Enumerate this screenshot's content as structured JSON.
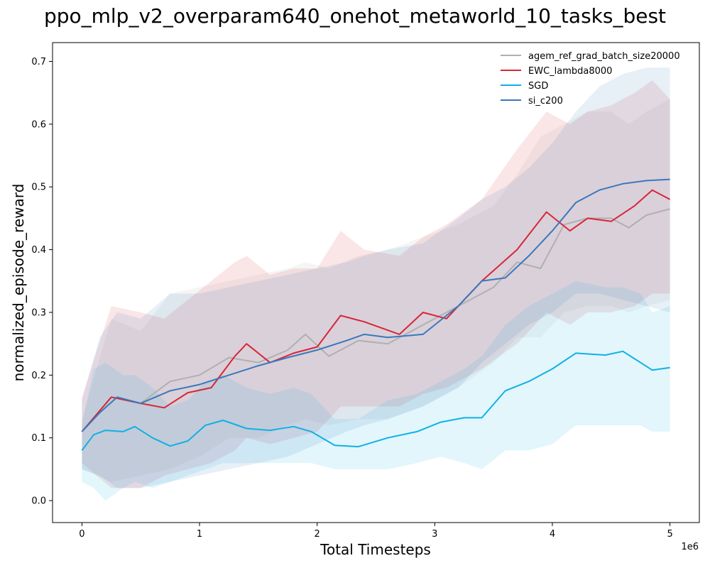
{
  "chart_data": {
    "type": "line",
    "title": "ppo_mlp_v2_overparam640_onehot_metaworld_10_tasks_best",
    "xlabel": "Total Timesteps",
    "ylabel": "normalized_episode_reward",
    "x_offset_label": "1e6",
    "xlim": [
      -0.25,
      5.25
    ],
    "ylim": [
      -0.035,
      0.73
    ],
    "xticks": [
      0,
      1,
      2,
      3,
      4,
      5
    ],
    "xtick_labels": [
      "0",
      "1",
      "2",
      "3",
      "4",
      "5"
    ],
    "yticks": [
      0.0,
      0.1,
      0.2,
      0.3,
      0.4,
      0.5,
      0.6,
      0.7
    ],
    "ytick_labels": [
      "0.0",
      "0.1",
      "0.2",
      "0.3",
      "0.4",
      "0.5",
      "0.6",
      "0.7"
    ],
    "grid": false,
    "legend_position": "top-right",
    "series": [
      {
        "name": "agem_ref_grad_batch_size20000",
        "color": "#b0b0b0",
        "x": [
          0,
          0.25,
          0.5,
          0.75,
          1.0,
          1.25,
          1.5,
          1.75,
          1.9,
          2.1,
          2.35,
          2.6,
          2.9,
          3.2,
          3.5,
          3.7,
          3.9,
          4.1,
          4.3,
          4.5,
          4.65,
          4.8,
          5.0
        ],
        "values": [
          0.11,
          0.165,
          0.155,
          0.19,
          0.2,
          0.228,
          0.22,
          0.24,
          0.265,
          0.23,
          0.255,
          0.25,
          0.28,
          0.31,
          0.34,
          0.38,
          0.37,
          0.44,
          0.45,
          0.45,
          0.435,
          0.455,
          0.465
        ],
        "upper": [
          0.13,
          0.29,
          0.27,
          0.33,
          0.34,
          0.35,
          0.36,
          0.37,
          0.38,
          0.37,
          0.39,
          0.4,
          0.42,
          0.44,
          0.47,
          0.52,
          0.58,
          0.6,
          0.62,
          0.62,
          0.6,
          0.62,
          0.64
        ],
        "lower": [
          0.05,
          0.03,
          0.04,
          0.05,
          0.07,
          0.1,
          0.1,
          0.12,
          0.13,
          0.12,
          0.13,
          0.13,
          0.15,
          0.18,
          0.22,
          0.26,
          0.26,
          0.3,
          0.31,
          0.31,
          0.3,
          0.31,
          0.32
        ]
      },
      {
        "name": "EWC_lambda8000",
        "color": "#d62738",
        "x": [
          0,
          0.25,
          0.5,
          0.7,
          0.9,
          1.1,
          1.3,
          1.4,
          1.6,
          1.8,
          2.0,
          2.2,
          2.4,
          2.7,
          2.9,
          3.1,
          3.4,
          3.7,
          3.95,
          4.15,
          4.3,
          4.5,
          4.7,
          4.85,
          5.0
        ],
        "values": [
          0.11,
          0.165,
          0.155,
          0.148,
          0.172,
          0.18,
          0.23,
          0.25,
          0.22,
          0.235,
          0.245,
          0.295,
          0.285,
          0.265,
          0.3,
          0.29,
          0.35,
          0.4,
          0.46,
          0.43,
          0.45,
          0.445,
          0.47,
          0.495,
          0.48
        ],
        "upper": [
          0.165,
          0.31,
          0.3,
          0.29,
          0.32,
          0.35,
          0.38,
          0.39,
          0.36,
          0.37,
          0.37,
          0.43,
          0.4,
          0.39,
          0.42,
          0.44,
          0.48,
          0.56,
          0.62,
          0.6,
          0.62,
          0.63,
          0.65,
          0.67,
          0.64
        ],
        "lower": [
          0.06,
          0.02,
          0.02,
          0.04,
          0.05,
          0.06,
          0.08,
          0.1,
          0.09,
          0.1,
          0.11,
          0.15,
          0.15,
          0.15,
          0.17,
          0.18,
          0.21,
          0.25,
          0.3,
          0.28,
          0.3,
          0.3,
          0.31,
          0.33,
          0.33
        ]
      },
      {
        "name": "SGD",
        "color": "#0fb1e4",
        "x": [
          0,
          0.1,
          0.2,
          0.35,
          0.45,
          0.6,
          0.75,
          0.9,
          1.05,
          1.2,
          1.4,
          1.6,
          1.8,
          1.95,
          2.15,
          2.35,
          2.6,
          2.85,
          3.05,
          3.25,
          3.4,
          3.6,
          3.8,
          4.0,
          4.2,
          4.45,
          4.6,
          4.75,
          4.85,
          5.0
        ],
        "values": [
          0.08,
          0.105,
          0.112,
          0.11,
          0.118,
          0.1,
          0.087,
          0.095,
          0.12,
          0.128,
          0.115,
          0.112,
          0.118,
          0.11,
          0.088,
          0.086,
          0.1,
          0.11,
          0.125,
          0.132,
          0.132,
          0.175,
          0.19,
          0.21,
          0.235,
          0.232,
          0.238,
          0.22,
          0.208,
          0.212
        ],
        "upper": [
          0.12,
          0.21,
          0.22,
          0.2,
          0.2,
          0.18,
          0.15,
          0.16,
          0.19,
          0.2,
          0.18,
          0.17,
          0.18,
          0.17,
          0.13,
          0.13,
          0.16,
          0.17,
          0.19,
          0.21,
          0.23,
          0.28,
          0.31,
          0.33,
          0.35,
          0.34,
          0.34,
          0.33,
          0.3,
          0.31
        ],
        "lower": [
          0.03,
          0.02,
          0.0,
          0.02,
          0.03,
          0.02,
          0.03,
          0.04,
          0.05,
          0.06,
          0.06,
          0.06,
          0.06,
          0.06,
          0.05,
          0.05,
          0.05,
          0.06,
          0.07,
          0.06,
          0.05,
          0.08,
          0.08,
          0.09,
          0.12,
          0.12,
          0.12,
          0.12,
          0.11,
          0.11
        ]
      },
      {
        "name": "si_c200",
        "color": "#3a78bc",
        "x": [
          0,
          0.15,
          0.3,
          0.5,
          0.75,
          1.0,
          1.25,
          1.5,
          1.75,
          2.0,
          2.25,
          2.4,
          2.6,
          2.9,
          3.2,
          3.4,
          3.6,
          3.8,
          4.0,
          4.2,
          4.4,
          4.6,
          4.8,
          5.0
        ],
        "values": [
          0.11,
          0.14,
          0.165,
          0.155,
          0.175,
          0.185,
          0.2,
          0.215,
          0.228,
          0.24,
          0.255,
          0.265,
          0.26,
          0.265,
          0.31,
          0.35,
          0.355,
          0.39,
          0.43,
          0.475,
          0.495,
          0.505,
          0.51,
          0.512
        ],
        "upper": [
          0.16,
          0.26,
          0.3,
          0.29,
          0.33,
          0.33,
          0.34,
          0.35,
          0.36,
          0.37,
          0.38,
          0.39,
          0.4,
          0.41,
          0.45,
          0.48,
          0.5,
          0.53,
          0.57,
          0.62,
          0.66,
          0.68,
          0.69,
          0.69
        ],
        "lower": [
          0.05,
          0.04,
          0.02,
          0.02,
          0.03,
          0.04,
          0.05,
          0.06,
          0.07,
          0.09,
          0.11,
          0.12,
          0.13,
          0.15,
          0.18,
          0.22,
          0.25,
          0.28,
          0.3,
          0.33,
          0.33,
          0.32,
          0.31,
          0.3
        ]
      }
    ]
  }
}
